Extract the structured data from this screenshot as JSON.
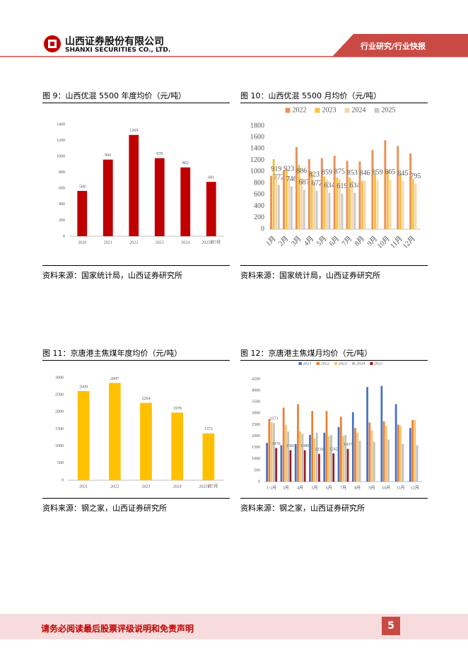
{
  "header": {
    "company": "山西证券股份有限公司",
    "company_en": "SHANXI SECURITIES CO., LTD.",
    "section": "行业研究/行业快报"
  },
  "footer": {
    "disclaimer": "请务必阅读最后股票评级说明和免责声明",
    "page": "5"
  },
  "chart_data": [
    {
      "type": "bar",
      "title": "图 9：山西优混 5500 年度均价（元/吨）",
      "source": "资料来源：国家统计局，山西证券研究所",
      "categories": [
        "2020",
        "2021",
        "2022",
        "2023",
        "2024",
        "2025前7月"
      ],
      "values": [
        568,
        960,
        1269,
        978,
        862,
        681
      ],
      "color": "#c00000",
      "data_labels": true,
      "ylim": [
        0,
        1400
      ],
      "yticks": [
        0,
        200,
        400,
        600,
        800,
        1000,
        1200,
        1400
      ]
    },
    {
      "type": "bar",
      "title": "图 10：山西优混 5500 月均价（元/吨）",
      "source": "资料来源：国家统计局，山西证券研究所",
      "categories": [
        "1月",
        "2月",
        "3月",
        "4月",
        "5月",
        "6月",
        "7月",
        "8月",
        "9月",
        "10月",
        "11月",
        "12月"
      ],
      "series": [
        {
          "name": "2022",
          "color": "#e8935a",
          "values": [
            930,
            1030,
            1430,
            1220,
            1240,
            1280,
            1190,
            1180,
            1380,
            1550,
            1450,
            1320
          ]
        },
        {
          "name": "2023",
          "color": "#f5c242",
          "values": [
            1220,
            1050,
            1120,
            1000,
            920,
            900,
            900,
            840,
            960,
            1010,
            960,
            880
          ]
        },
        {
          "name": "2024",
          "color": "#f6d6ae",
          "values": [
            919,
            923,
            886,
            823,
            859,
            875,
            853,
            846,
            859,
            865,
            845,
            795
          ],
          "data_labels": true
        },
        {
          "name": "2025",
          "color": "#c9c9c9",
          "values": [
            772,
            746,
            687,
            672,
            634,
            619,
            634,
            null,
            null,
            null,
            null,
            null
          ],
          "data_labels": true
        }
      ],
      "legend": "top",
      "xlabel_rotation": 45,
      "ylim": [
        0,
        1800
      ],
      "yticks": [
        0,
        200,
        400,
        600,
        800,
        1000,
        1200,
        1400,
        1600,
        1800
      ]
    },
    {
      "type": "bar",
      "title": "图 11：京唐港主焦煤年度均价（元/吨）",
      "source": "资料来源：钢之家，山西证券研究所",
      "categories": [
        "2021",
        "2022",
        "2023",
        "2024",
        "2025前7月"
      ],
      "values": [
        2609,
        2847,
        2264,
        1978,
        1372
      ],
      "color": "#ffc000",
      "data_labels": true,
      "ylim": [
        0,
        3000
      ],
      "yticks": [
        0,
        500,
        1000,
        1500,
        2000,
        2500,
        3000
      ]
    },
    {
      "type": "bar",
      "title": "图 12：京唐港主焦煤月均价（元/吨）",
      "source": "资料来源：钢之家，山西证券研究所",
      "categories": [
        "1-2月",
        "3月",
        "4月",
        "5月",
        "6月",
        "7月",
        "8月",
        "9月",
        "10月",
        "11月",
        "12月"
      ],
      "series": [
        {
          "name": "2021",
          "color": "#4472c4",
          "values": [
            1700,
            1600,
            1650,
            2050,
            2150,
            2400,
            3050,
            4150,
            4200,
            3400,
            2350
          ]
        },
        {
          "name": "2022",
          "color": "#ed7d31",
          "values": [
            2750,
            3250,
            3400,
            3100,
            3100,
            2850,
            2350,
            2600,
            2650,
            2500,
            2700
          ]
        },
        {
          "name": "2023",
          "color": "#f2c46b",
          "values": [
            2600,
            2500,
            2200,
            1900,
            2000,
            2000,
            2150,
            2250,
            2450,
            2450,
            2700
          ]
        },
        {
          "name": "2024",
          "color": "#bfbfbf",
          "values": [
            2573,
            2200,
            2100,
            2150,
            2050,
            2050,
            1800,
            1750,
            1850,
            1650,
            1600
          ],
          "value_labels": [
            "2573",
            null,
            null,
            null,
            null,
            null,
            null,
            null,
            null,
            null,
            null
          ]
        },
        {
          "name": "2025",
          "color": "#9e1c20",
          "values": [
            1476,
            1381,
            1380,
            1219,
            1242,
            1437,
            null,
            null,
            null,
            null,
            null
          ],
          "value_labels": [
            "1476",
            "1381",
            "1380",
            "1219",
            "1242",
            "1437",
            null,
            null,
            null,
            null,
            null
          ]
        }
      ],
      "legend": "top",
      "ylim": [
        0,
        4500
      ],
      "yticks": [
        0,
        500,
        1000,
        1500,
        2000,
        2500,
        3000,
        3500,
        4000,
        4500
      ]
    }
  ]
}
